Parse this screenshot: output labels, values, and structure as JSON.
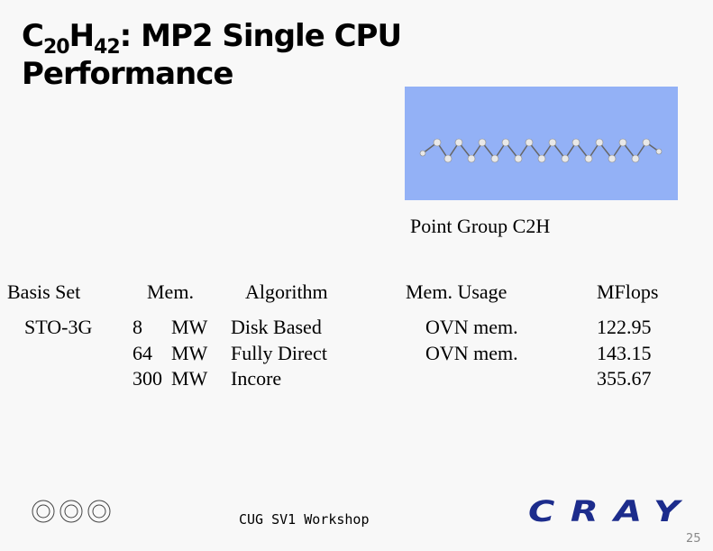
{
  "title": {
    "c": "C",
    "c_sub": "20",
    "h": "H",
    "h_sub": "42",
    "rest_line1": ": MP2 Single CPU",
    "line2": "Performance"
  },
  "caption": "Point Group C2H",
  "table": {
    "headers": [
      "Basis Set",
      "Mem.",
      "Algorithm",
      "Mem. Usage",
      "MFlops"
    ],
    "rows": [
      {
        "basis": "STO-3G",
        "mem": "8",
        "unit": "MW",
        "algorithm": "Disk Based",
        "usage": "OVN mem.",
        "mflops": "122.95"
      },
      {
        "mem": "64",
        "unit": "MW",
        "algorithm": "Fully Direct",
        "usage": "OVN mem.",
        "mflops": "143.15"
      },
      {
        "mem": "300",
        "unit": "MW",
        "algorithm": "Incore",
        "mflops": "355.67"
      }
    ]
  },
  "footer": {
    "workshop": "CUG SV1 Workshop",
    "logo": "CRAY",
    "page": "25"
  }
}
